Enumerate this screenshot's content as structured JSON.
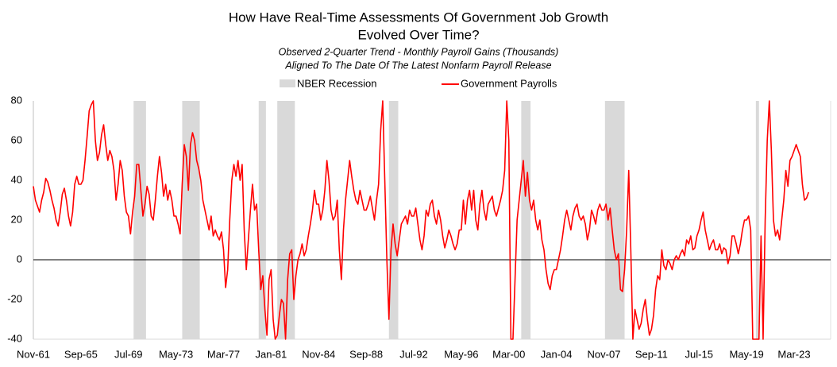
{
  "chart_data": {
    "type": "line",
    "title_lines": [
      "How Have Real-Time Assessments Of Government Job Growth",
      "Evolved Over Time?"
    ],
    "subtitle_lines": [
      "Observed 2-Quarter Trend - Monthly Payroll Gains (Thousands)",
      "Aligned To The Date Of The Latest Nonfarm Payroll Release"
    ],
    "recession_label": "NBER Recession",
    "recession_color": "#d9d9d9",
    "recessions": [
      {
        "start": "Dec-69",
        "end": "Nov-70"
      },
      {
        "start": "Nov-73",
        "end": "Mar-75"
      },
      {
        "start": "Jan-80",
        "end": "Jul-80"
      },
      {
        "start": "Jul-81",
        "end": "Nov-82"
      },
      {
        "start": "Jul-90",
        "end": "Mar-91"
      },
      {
        "start": "Mar-01",
        "end": "Nov-01"
      },
      {
        "start": "Dec-07",
        "end": "Jun-09"
      },
      {
        "start": "Feb-20",
        "end": "Apr-20"
      }
    ],
    "ylim": [
      -40,
      80
    ],
    "yticks": [
      -40,
      -20,
      0,
      20,
      40,
      60,
      80
    ],
    "grid": false,
    "categories": [
      "Nov-61",
      null,
      null,
      null,
      null,
      null,
      null,
      null,
      null,
      null,
      null,
      null,
      null,
      null,
      null,
      null,
      null,
      null,
      null,
      null,
      null,
      null,
      null,
      "Sep-65",
      null,
      null,
      null,
      null,
      null,
      null,
      null,
      null,
      null,
      null,
      null,
      null,
      null,
      null,
      null,
      null,
      null,
      null,
      null,
      null,
      null,
      null,
      "Jul-69",
      null,
      null,
      null,
      null,
      null,
      null,
      null,
      null,
      null,
      null,
      null,
      null,
      null,
      null,
      null,
      null,
      null,
      null,
      null,
      null,
      null,
      null,
      "May-73",
      null,
      null,
      null,
      null,
      null,
      null,
      null,
      null,
      null,
      null,
      null,
      null,
      null,
      null,
      null,
      null,
      null,
      null,
      null,
      null,
      null,
      null,
      "Mar-77",
      null,
      null,
      null,
      null,
      null,
      null,
      null,
      null,
      null,
      null,
      null,
      null,
      null,
      null,
      null,
      null,
      null,
      null,
      null,
      null,
      null,
      null,
      "Jan-81",
      null,
      null,
      null,
      null,
      null,
      null,
      null,
      null,
      null,
      null,
      null,
      null,
      null,
      null,
      null,
      null,
      null,
      null,
      null,
      null,
      null,
      null,
      "Nov-84",
      null,
      null,
      null,
      null,
      null,
      null,
      null,
      null,
      null,
      null,
      null,
      null,
      null,
      null,
      null,
      null,
      null,
      null,
      null,
      null,
      null,
      null,
      "Sep-88",
      null,
      null,
      null,
      null,
      null,
      null,
      null,
      null,
      null,
      null,
      null,
      null,
      null,
      null,
      null,
      null,
      null,
      null,
      null,
      null,
      null,
      null,
      "Jul-92",
      null,
      null,
      null,
      null,
      null,
      null,
      null,
      null,
      null,
      null,
      null,
      null,
      null,
      null,
      null,
      null,
      null,
      null,
      null,
      null,
      null,
      null,
      "May-96",
      null,
      null,
      null,
      null,
      null,
      null,
      null,
      null,
      null,
      null,
      null,
      null,
      null,
      null,
      null,
      null,
      null,
      null,
      null,
      null,
      null,
      null,
      "Mar-00",
      null,
      null,
      null,
      null,
      null,
      null,
      null,
      null,
      null,
      null,
      null,
      null,
      null,
      null,
      null,
      null,
      null,
      null,
      null,
      null,
      null,
      null,
      "Jan-04",
      null,
      null,
      null,
      null,
      null,
      null,
      null,
      null,
      null,
      null,
      null,
      null,
      null,
      null,
      null,
      null,
      null,
      null,
      null,
      null,
      null,
      null,
      "Nov-07",
      null,
      null,
      null,
      null,
      null,
      null,
      null,
      null,
      null,
      null,
      null,
      null,
      null,
      null,
      null,
      null,
      null,
      null,
      null,
      null,
      null,
      null,
      "Sep-11",
      null,
      null,
      null,
      null,
      null,
      null,
      null,
      null,
      null,
      null,
      null,
      null,
      null,
      null,
      null,
      null,
      null,
      null,
      null,
      null,
      null,
      null,
      "Jul-15",
      null,
      null,
      null,
      null,
      null,
      null,
      null,
      null,
      null,
      null,
      null,
      null,
      null,
      null,
      null,
      null,
      null,
      null,
      null,
      null,
      null,
      null,
      "May-19",
      null,
      null,
      null,
      null,
      null,
      null,
      null,
      null,
      null,
      null,
      null,
      null,
      null,
      null,
      null,
      null,
      null,
      null,
      null,
      null,
      null,
      null,
      "Mar-23",
      null,
      null,
      null,
      null,
      null,
      null,
      null
    ],
    "series": [
      {
        "name": "Government Payrolls",
        "color": "#ff0000",
        "values": [
          37,
          30,
          27,
          24,
          30,
          34,
          41,
          39,
          35,
          30,
          26,
          20,
          17,
          24,
          33,
          36,
          30,
          22,
          17,
          24,
          38,
          42,
          38,
          38,
          40,
          50,
          62,
          75,
          78,
          80,
          60,
          50,
          54,
          63,
          68,
          58,
          50,
          55,
          52,
          45,
          30,
          38,
          50,
          45,
          32,
          24,
          22,
          13,
          24,
          32,
          48,
          48,
          35,
          22,
          28,
          37,
          33,
          22,
          20,
          30,
          42,
          52,
          44,
          32,
          38,
          30,
          35,
          30,
          22,
          22,
          18,
          13,
          38,
          58,
          52,
          35,
          58,
          64,
          60,
          50,
          46,
          40,
          30,
          25,
          20,
          15,
          22,
          12,
          15,
          12,
          10,
          14,
          5,
          -14,
          -5,
          20,
          40,
          48,
          42,
          50,
          40,
          48,
          15,
          -5,
          10,
          25,
          38,
          25,
          28,
          5,
          -15,
          -8,
          -25,
          -38,
          -10,
          -5,
          -30,
          -40,
          -38,
          -28,
          -20,
          -22,
          -40,
          -10,
          3,
          5,
          -20,
          -8,
          0,
          3,
          8,
          2,
          5,
          12,
          18,
          25,
          35,
          28,
          28,
          20,
          25,
          35,
          50,
          40,
          25,
          20,
          22,
          30,
          5,
          -10,
          15,
          30,
          40,
          50,
          42,
          35,
          30,
          28,
          35,
          30,
          25,
          25,
          28,
          32,
          26,
          20,
          30,
          38,
          65,
          80,
          40,
          0,
          -30,
          5,
          18,
          8,
          2,
          10,
          18,
          20,
          22,
          18,
          25,
          22,
          22,
          26,
          18,
          10,
          5,
          12,
          25,
          22,
          28,
          30,
          22,
          18,
          25,
          20,
          12,
          6,
          10,
          15,
          12,
          8,
          5,
          8,
          15,
          15,
          30,
          18,
          30,
          35,
          25,
          35,
          20,
          15,
          28,
          35,
          25,
          20,
          28,
          30,
          32,
          25,
          22,
          26,
          30,
          35,
          45,
          80,
          60,
          -40,
          -40,
          -10,
          20,
          30,
          40,
          50,
          32,
          44,
          30,
          25,
          30,
          20,
          15,
          20,
          10,
          5,
          -5,
          -12,
          -15,
          -8,
          -5,
          -5,
          0,
          5,
          12,
          20,
          25,
          20,
          15,
          22,
          26,
          28,
          22,
          20,
          22,
          18,
          10,
          15,
          25,
          22,
          18,
          25,
          28,
          25,
          25,
          28,
          20,
          26,
          15,
          5,
          0,
          3,
          -15,
          -16,
          -5,
          15,
          45,
          5,
          -40,
          -25,
          -30,
          -35,
          -32,
          -25,
          -20,
          -30,
          -38,
          -35,
          -28,
          -15,
          -8,
          -10,
          5,
          -3,
          -5,
          0,
          -2,
          -5,
          0,
          2,
          0,
          3,
          5,
          2,
          10,
          8,
          12,
          5,
          6,
          12,
          15,
          20,
          24,
          15,
          10,
          5,
          8,
          10,
          5,
          5,
          8,
          3,
          6,
          5,
          -2,
          2,
          12,
          12,
          8,
          3,
          8,
          15,
          20,
          20,
          22,
          15,
          -40,
          -40,
          -40,
          -40,
          12,
          -40,
          20,
          60,
          80,
          55,
          20,
          12,
          15,
          10,
          20,
          30,
          45,
          37,
          50,
          52,
          55,
          58,
          55,
          52,
          38,
          30,
          31,
          34
        ]
      }
    ]
  }
}
